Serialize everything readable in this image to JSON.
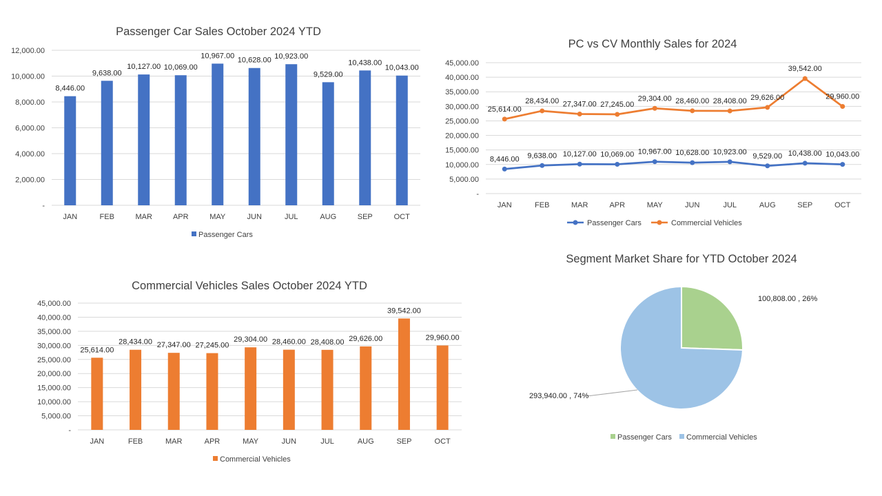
{
  "colors": {
    "pc_blue": "#4472c4",
    "cv_orange": "#ed7d31",
    "pie_green": "#a9d18e",
    "pie_lightblue": "#9dc3e6",
    "gridline": "#d9d9d9",
    "text": "#404040"
  },
  "chart_data": [
    {
      "type": "bar",
      "title": "Passenger Car Sales October 2024 YTD",
      "categories": [
        "JAN",
        "FEB",
        "MAR",
        "APR",
        "MAY",
        "JUN",
        "JUL",
        "AUG",
        "SEP",
        "OCT"
      ],
      "series": [
        {
          "name": "Passenger Cars",
          "values": [
            8446,
            9638,
            10127,
            10069,
            10967,
            10628,
            10923,
            9529,
            10438,
            10043
          ],
          "color": "#4472c4"
        }
      ],
      "data_labels": [
        "8,446.00",
        "9,638.00",
        "10,127.00",
        "10,069.00",
        "10,967.00",
        "10,628.00",
        "10,923.00",
        "9,529.00",
        "10,438.00",
        "10,043.00"
      ],
      "y_ticks": [
        "-",
        "2,000.00",
        "4,000.00",
        "6,000.00",
        "8,000.00",
        "10,000.00",
        "12,000.00"
      ],
      "ylim": [
        0,
        12000
      ],
      "grid": true,
      "legend_position": "bottom"
    },
    {
      "type": "line",
      "title": "PC vs CV Monthly Sales for 2024",
      "categories": [
        "JAN",
        "FEB",
        "MAR",
        "APR",
        "MAY",
        "JUN",
        "JUL",
        "AUG",
        "SEP",
        "OCT"
      ],
      "series": [
        {
          "name": "Passenger Cars",
          "values": [
            8446,
            9638,
            10127,
            10069,
            10967,
            10628,
            10923,
            9529,
            10438,
            10043
          ],
          "color": "#4472c4",
          "data_labels": [
            "8,446.00",
            "9,638.00",
            "10,127.00",
            "10,069.00",
            "10,967.00",
            "10,628.00",
            "10,923.00",
            "9,529.00",
            "10,438.00",
            "10,043.00"
          ]
        },
        {
          "name": "Commercial Vehicles",
          "values": [
            25614,
            28434,
            27347,
            27245,
            29304,
            28460,
            28408,
            29626,
            39542,
            29960
          ],
          "color": "#ed7d31",
          "data_labels": [
            "25,614.00",
            "28,434.00",
            "27,347.00",
            "27,245.00",
            "29,304.00",
            "28,460.00",
            "28,408.00",
            "29,626.00",
            "39,542.00",
            "29,960.00"
          ]
        }
      ],
      "y_ticks": [
        "-",
        "5,000.00",
        "10,000.00",
        "15,000.00",
        "20,000.00",
        "25,000.00",
        "30,000.00",
        "35,000.00",
        "40,000.00",
        "45,000.00"
      ],
      "ylim": [
        0,
        45000
      ],
      "grid": true,
      "legend_position": "bottom"
    },
    {
      "type": "bar",
      "title": "Commercial Vehicles Sales October 2024 YTD",
      "categories": [
        "JAN",
        "FEB",
        "MAR",
        "APR",
        "MAY",
        "JUN",
        "JUL",
        "AUG",
        "SEP",
        "OCT"
      ],
      "series": [
        {
          "name": "Commercial Vehicles",
          "values": [
            25614,
            28434,
            27347,
            27245,
            29304,
            28460,
            28408,
            29626,
            39542,
            29960
          ],
          "color": "#ed7d31"
        }
      ],
      "data_labels": [
        "25,614.00",
        "28,434.00",
        "27,347.00",
        "27,245.00",
        "29,304.00",
        "28,460.00",
        "28,408.00",
        "29,626.00",
        "39,542.00",
        "29,960.00"
      ],
      "y_ticks": [
        "-",
        "5,000.00",
        "10,000.00",
        "15,000.00",
        "20,000.00",
        "25,000.00",
        "30,000.00",
        "35,000.00",
        "40,000.00",
        "45,000.00"
      ],
      "ylim": [
        0,
        45000
      ],
      "grid": true,
      "legend_position": "bottom"
    },
    {
      "type": "pie",
      "title": "Segment Market Share for YTD October 2024",
      "slices": [
        {
          "name": "Passenger Cars",
          "value": 100808,
          "percent": 26,
          "label": "100,808.00 , 26%",
          "color": "#a9d18e"
        },
        {
          "name": "Commercial Vehicles",
          "value": 293940,
          "percent": 74,
          "label": "293,940.00 , 74%",
          "color": "#9dc3e6"
        }
      ],
      "legend_position": "bottom"
    }
  ]
}
